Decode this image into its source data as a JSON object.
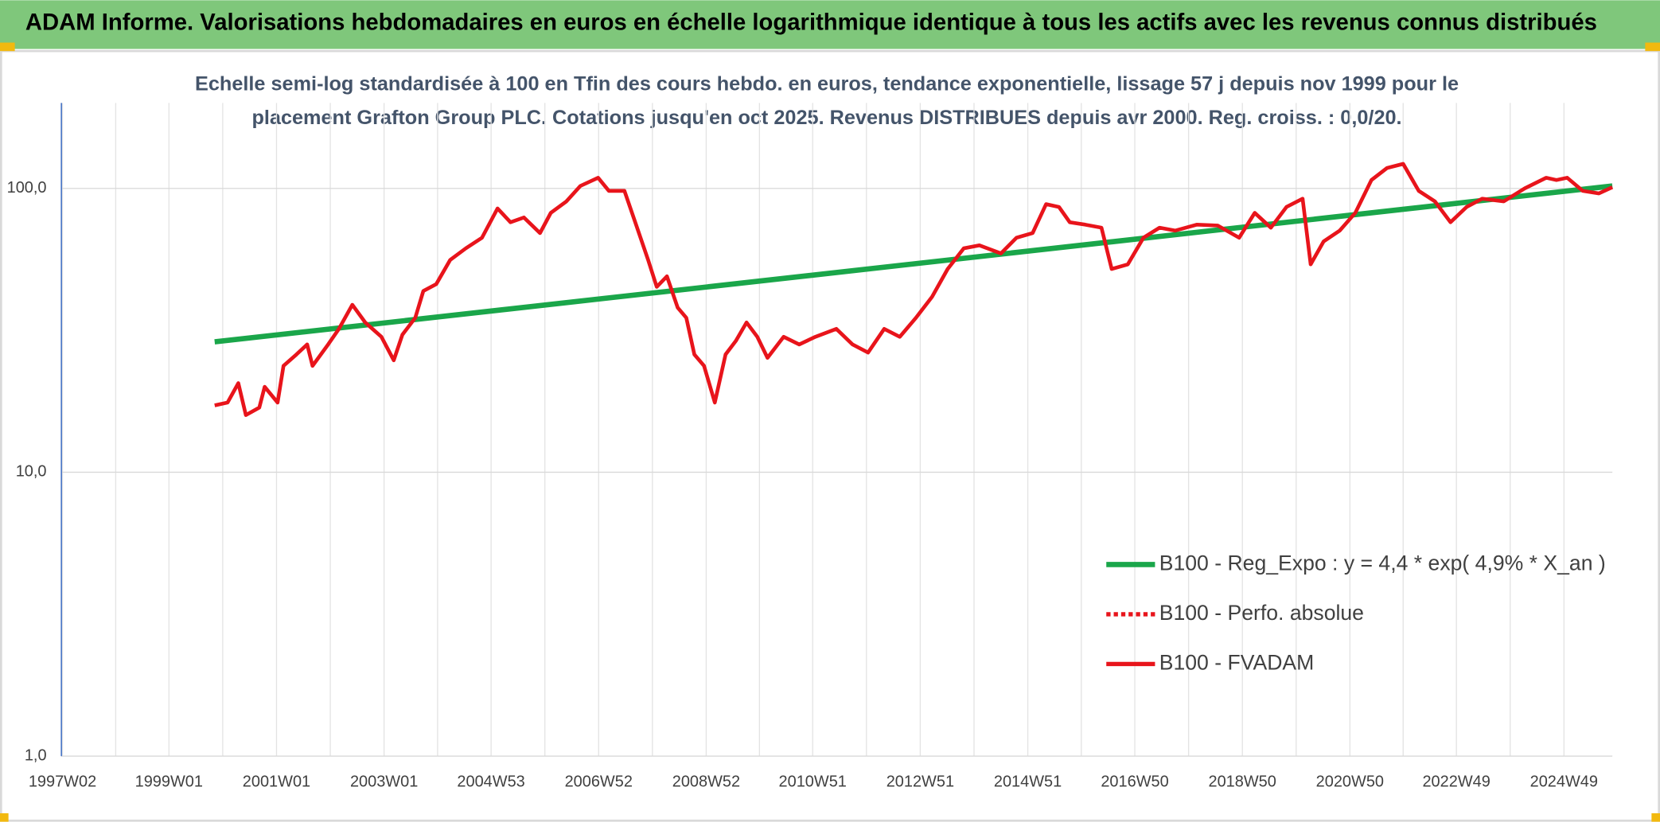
{
  "header": {
    "title": "ADAM Informe. Valorisations hebdomadaires en euros en échelle logarithmique identique à tous les actifs avec les revenus connus distribués"
  },
  "chart_data": {
    "type": "line",
    "title": [
      "Echelle semi-log standardisée à 100 en Tfin des cours hebdo. en euros, tendance exponentielle, lissage 57 j depuis nov 1999 pour le",
      "placement Grafton Group PLC. Cotations jusqu'en oct 2025. Revenus DISTRIBUES depuis avr 2000. Reg. croiss. : 0,0/20."
    ],
    "xlim": [
      1997.0,
      2025.84
    ],
    "xticks": [
      {
        "value": 1997.02,
        "label": "1997W02"
      },
      {
        "value": 1999.0,
        "label": "1999W01"
      },
      {
        "value": 2001.0,
        "label": "2001W01"
      },
      {
        "value": 2003.0,
        "label": "2003W01"
      },
      {
        "value": 2004.99,
        "label": "2004W53"
      },
      {
        "value": 2006.99,
        "label": "2006W52"
      },
      {
        "value": 2008.99,
        "label": "2008W52"
      },
      {
        "value": 2010.97,
        "label": "2010W51"
      },
      {
        "value": 2012.97,
        "label": "2012W51"
      },
      {
        "value": 2014.97,
        "label": "2014W51"
      },
      {
        "value": 2016.96,
        "label": "2016W50"
      },
      {
        "value": 2018.96,
        "label": "2018W50"
      },
      {
        "value": 2020.96,
        "label": "2020W50"
      },
      {
        "value": 2022.94,
        "label": "2022W49"
      },
      {
        "value": 2024.94,
        "label": "2024W49"
      }
    ],
    "ylim": [
      1,
      200
    ],
    "log_y": true,
    "yticks": [
      {
        "value": 1,
        "label": "1,0"
      },
      {
        "value": 10,
        "label": "10,0"
      },
      {
        "value": 100,
        "label": "100,0"
      }
    ],
    "grid": true,
    "minor_x_grid": true,
    "legend": "lower right",
    "series": [
      {
        "name": "B100 - Reg_Expo : y = 4,4 * exp( 4,9% *  X_an )",
        "color": "#1aa64a",
        "style": "solid",
        "x": [
          1999.85,
          2025.84
        ],
        "values": [
          28.8,
          102
        ]
      },
      {
        "name": "B100 - Perfo. absolue",
        "color": "#e8141b",
        "style": "dotted"
      },
      {
        "name": "B100 - FVADAM",
        "color": "#e8141b",
        "style": "solid",
        "x": [
          1999.85,
          2000.09,
          2000.29,
          2000.43,
          2000.68,
          2000.78,
          2001.02,
          2001.13,
          2001.37,
          2001.57,
          2001.67,
          2001.96,
          2002.16,
          2002.41,
          2002.65,
          2002.95,
          2003.18,
          2003.34,
          2003.58,
          2003.73,
          2003.97,
          2004.23,
          2004.52,
          2004.82,
          2005.11,
          2005.35,
          2005.6,
          2005.9,
          2006.1,
          2006.39,
          2006.65,
          2006.98,
          2007.18,
          2007.47,
          2007.67,
          2007.91,
          2008.07,
          2008.26,
          2008.46,
          2008.62,
          2008.77,
          2008.95,
          2009.15,
          2009.35,
          2009.54,
          2009.74,
          2009.94,
          2010.13,
          2010.43,
          2010.72,
          2011.02,
          2011.41,
          2011.71,
          2012.0,
          2012.3,
          2012.59,
          2012.89,
          2013.19,
          2013.48,
          2013.78,
          2014.07,
          2014.47,
          2014.76,
          2015.06,
          2015.31,
          2015.55,
          2015.75,
          2016.04,
          2016.34,
          2016.53,
          2016.83,
          2017.12,
          2017.42,
          2017.71,
          2018.11,
          2018.5,
          2018.9,
          2019.19,
          2019.49,
          2019.78,
          2020.08,
          2020.23,
          2020.47,
          2020.77,
          2021.06,
          2021.36,
          2021.65,
          2021.95,
          2022.24,
          2022.54,
          2022.83,
          2023.13,
          2023.42,
          2023.82,
          2024.21,
          2024.61,
          2024.8,
          2025.0,
          2025.29,
          2025.59,
          2025.84
        ],
        "values": [
          17.2,
          17.6,
          20.6,
          15.9,
          16.9,
          20,
          17.6,
          23.7,
          26,
          28.2,
          23.7,
          28.2,
          32,
          38.9,
          33.7,
          30,
          24.8,
          30.5,
          35,
          43.5,
          46,
          56,
          61.5,
          67,
          85,
          76,
          79,
          69.6,
          82,
          90,
          102,
          109,
          98,
          98,
          76,
          56,
          45,
          49,
          38,
          35,
          26,
          23.7,
          17.6,
          26,
          29,
          33.7,
          30,
          25.3,
          30,
          28.2,
          30,
          32,
          28.2,
          26.4,
          32,
          30,
          35,
          41.5,
          52,
          61.5,
          63,
          59,
          67,
          69.6,
          88,
          86,
          76,
          74.5,
          72.7,
          52,
          54,
          67,
          72.7,
          71,
          74.5,
          74,
          67,
          82,
          72.7,
          86,
          92,
          54,
          65,
          71,
          82,
          107,
          118,
          122,
          98,
          90,
          76,
          86,
          92,
          90,
          100,
          109,
          107,
          109,
          98,
          96,
          101
        ]
      }
    ]
  }
}
